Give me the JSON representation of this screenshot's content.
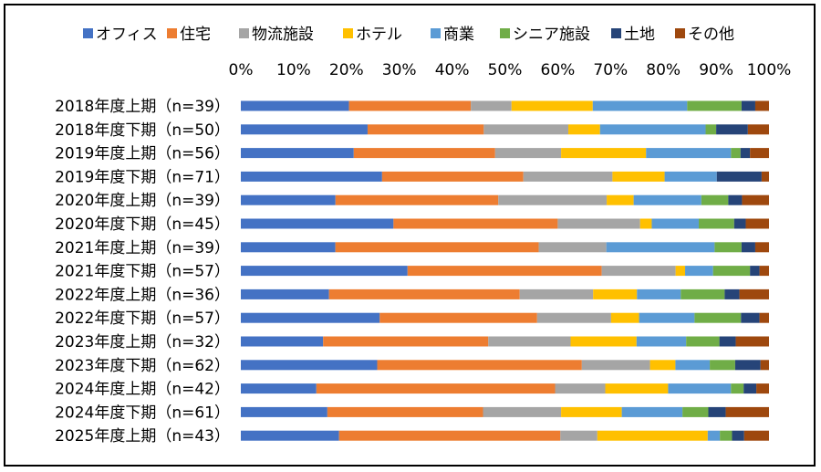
{
  "chart_data": {
    "type": "bar",
    "orientation": "horizontal",
    "stacked": "percent",
    "title": "",
    "xlabel": "",
    "ylabel": "",
    "xlim": [
      0,
      100
    ],
    "x_ticks": [
      "0%",
      "10%",
      "20%",
      "30%",
      "40%",
      "50%",
      "60%",
      "70%",
      "80%",
      "90%",
      "100%"
    ],
    "legend_position": "top",
    "categories": [
      "2018年度上期（n=39）",
      "2018年度下期（n=50）",
      "2019年度上期（n=56）",
      "2019年度下期（n=71）",
      "2020年度上期（n=39）",
      "2020年度下期（n=45）",
      "2021年度上期（n=39）",
      "2021年度下期（n=57）",
      "2022年度上期（n=36）",
      "2022年度下期（n=57）",
      "2023年度上期（n=32）",
      "2023年度下期（n=62）",
      "2024年度上期（n=42）",
      "2024年度下期（n=61）",
      "2025年度上期（n=43）"
    ],
    "series": [
      {
        "name": "オフィス",
        "color": "#4472C4",
        "values": [
          20.5,
          24.0,
          21.4,
          26.8,
          17.9,
          28.9,
          17.9,
          31.6,
          16.7,
          26.3,
          15.6,
          25.8,
          14.3,
          16.4,
          18.6
        ]
      },
      {
        "name": "住宅",
        "color": "#ED7D31",
        "values": [
          23.1,
          22.0,
          26.8,
          26.8,
          30.8,
          31.1,
          38.5,
          36.8,
          36.1,
          29.8,
          31.3,
          38.7,
          45.2,
          29.5,
          41.9
        ]
      },
      {
        "name": "物流施設",
        "color": "#A5A5A5",
        "values": [
          7.7,
          16.0,
          12.5,
          16.9,
          20.5,
          15.6,
          12.8,
          14.0,
          13.9,
          14.0,
          15.6,
          12.9,
          9.5,
          14.8,
          7.0
        ]
      },
      {
        "name": "ホテル",
        "color": "#FFC000",
        "values": [
          15.4,
          6.0,
          16.1,
          9.9,
          5.1,
          2.2,
          0.0,
          1.8,
          8.3,
          5.3,
          12.5,
          4.8,
          11.9,
          11.5,
          20.9
        ]
      },
      {
        "name": "商業",
        "color": "#5B9BD5",
        "values": [
          17.9,
          20.0,
          16.1,
          9.9,
          12.8,
          8.9,
          20.5,
          5.3,
          8.3,
          10.5,
          9.4,
          6.5,
          11.9,
          11.5,
          2.3
        ]
      },
      {
        "name": "シニア施設",
        "color": "#70AD47",
        "values": [
          10.3,
          2.0,
          1.8,
          0.0,
          5.1,
          6.7,
          5.1,
          7.0,
          8.3,
          8.8,
          6.3,
          4.8,
          2.4,
          4.9,
          2.3
        ]
      },
      {
        "name": "土地",
        "color": "#264478",
        "values": [
          2.6,
          6.0,
          1.8,
          8.5,
          2.6,
          2.2,
          2.6,
          1.8,
          2.8,
          3.5,
          3.1,
          4.8,
          2.4,
          3.3,
          2.3
        ]
      },
      {
        "name": "その他",
        "color": "#9E480E",
        "values": [
          2.6,
          4.0,
          3.6,
          1.4,
          5.1,
          4.4,
          2.6,
          1.8,
          5.6,
          1.8,
          6.3,
          1.6,
          2.4,
          8.2,
          4.7
        ]
      }
    ],
    "grid": false
  }
}
